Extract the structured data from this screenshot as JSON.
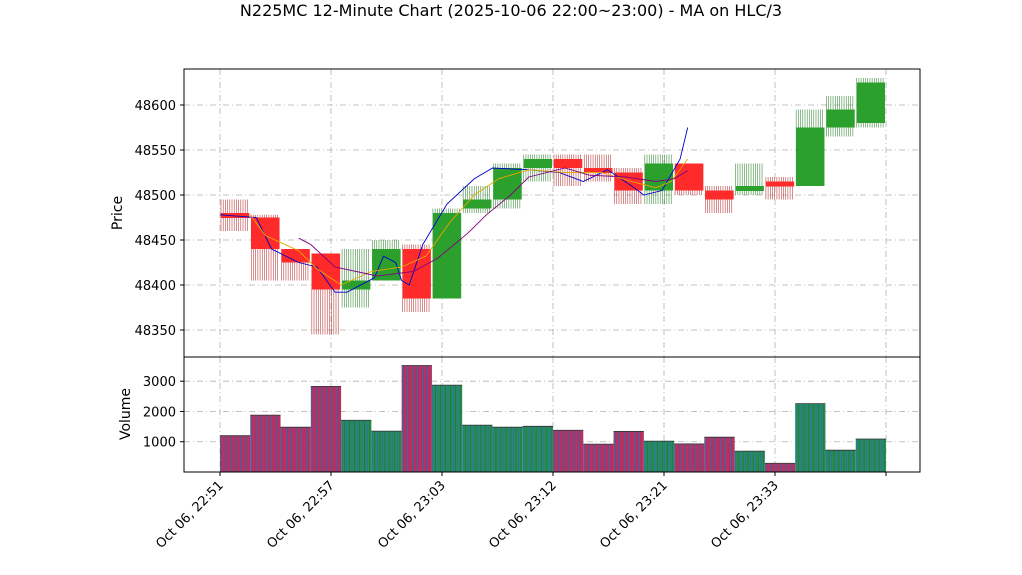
{
  "chart_data": {
    "type": "candlestick",
    "title": "N225MC 12-Minute Chart (2025-10-06 22:00~23:00) - MA on HLC/3",
    "price_panel": {
      "ylabel": "Price",
      "ylim": [
        48320,
        48640
      ],
      "yticks": [
        48350,
        48400,
        48450,
        48500,
        48550,
        48600
      ],
      "ytick_labels": [
        "48350",
        "48400",
        "48450",
        "48500",
        "48550",
        "48600"
      ],
      "grid": true
    },
    "volume_panel": {
      "ylabel": "Volume",
      "ylim": [
        0,
        3800
      ],
      "yticks": [
        1000,
        2000,
        3000
      ],
      "ytick_labels": [
        "1000",
        "2000",
        "3000"
      ],
      "grid": true
    },
    "x_axis": {
      "tick_labels": [
        "Oct 06, 22:51",
        "Oct 06, 22:57",
        "Oct 06, 23:03",
        "Oct 06, 23:12",
        "Oct 06, 23:21",
        "Oct 06, 23:33"
      ]
    },
    "candles": [
      {
        "open": 48480,
        "high": 48495,
        "low": 48460,
        "close": 48475,
        "volume": 1200
      },
      {
        "open": 48475,
        "high": 48478,
        "low": 48405,
        "close": 48440,
        "volume": 1880
      },
      {
        "open": 48440,
        "high": 48440,
        "low": 48405,
        "close": 48425,
        "volume": 1480
      },
      {
        "open": 48435,
        "high": 48435,
        "low": 48345,
        "close": 48395,
        "volume": 2830
      },
      {
        "open": 48395,
        "high": 48440,
        "low": 48375,
        "close": 48405,
        "volume": 1710
      },
      {
        "open": 48405,
        "high": 48450,
        "low": 48405,
        "close": 48440,
        "volume": 1350
      },
      {
        "open": 48440,
        "high": 48445,
        "low": 48370,
        "close": 48385,
        "volume": 3520
      },
      {
        "open": 48385,
        "high": 48485,
        "low": 48385,
        "close": 48480,
        "volume": 2870
      },
      {
        "open": 48485,
        "high": 48510,
        "low": 48480,
        "close": 48495,
        "volume": 1550
      },
      {
        "open": 48495,
        "high": 48535,
        "low": 48485,
        "close": 48530,
        "volume": 1480
      },
      {
        "open": 48530,
        "high": 48545,
        "low": 48515,
        "close": 48540,
        "volume": 1510
      },
      {
        "open": 48540,
        "high": 48545,
        "low": 48510,
        "close": 48530,
        "volume": 1380
      },
      {
        "open": 48530,
        "high": 48545,
        "low": 48515,
        "close": 48525,
        "volume": 920
      },
      {
        "open": 48525,
        "high": 48530,
        "low": 48490,
        "close": 48505,
        "volume": 1340
      },
      {
        "open": 48505,
        "high": 48545,
        "low": 48490,
        "close": 48535,
        "volume": 1020
      },
      {
        "open": 48535,
        "high": 48535,
        "low": 48500,
        "close": 48505,
        "volume": 930
      },
      {
        "open": 48505,
        "high": 48510,
        "low": 48480,
        "close": 48495,
        "volume": 1150
      },
      {
        "open": 48505,
        "high": 48535,
        "low": 48500,
        "close": 48510,
        "volume": 690
      },
      {
        "open": 48515,
        "high": 48520,
        "low": 48495,
        "close": 48510,
        "volume": 290
      },
      {
        "open": 48510,
        "high": 48595,
        "low": 48510,
        "close": 48575,
        "volume": 2260
      },
      {
        "open": 48575,
        "high": 48610,
        "low": 48565,
        "close": 48595,
        "volume": 720
      },
      {
        "open": 48580,
        "high": 48630,
        "low": 48575,
        "close": 48625,
        "volume": 1090
      }
    ],
    "moving_averages": [
      {
        "color": "#0000cc",
        "points": [
          [
            0,
            48478
          ],
          [
            1.2,
            48475
          ],
          [
            1.7,
            48440
          ],
          [
            2.6,
            48425
          ],
          [
            3.2,
            48420
          ],
          [
            3.8,
            48392
          ],
          [
            4.2,
            48392
          ],
          [
            5.1,
            48408
          ],
          [
            5.4,
            48432
          ],
          [
            5.8,
            48425
          ],
          [
            6.0,
            48405
          ],
          [
            6.25,
            48400
          ],
          [
            6.7,
            48445
          ],
          [
            7.5,
            48490
          ],
          [
            8.4,
            48518
          ],
          [
            9.0,
            48530
          ],
          [
            10.2,
            48528
          ],
          [
            11.2,
            48525
          ],
          [
            12.0,
            48515
          ],
          [
            12.8,
            48528
          ],
          [
            13.6,
            48510
          ],
          [
            14.0,
            48500
          ],
          [
            14.6,
            48505
          ],
          [
            15.2,
            48540
          ],
          [
            15.45,
            48575
          ]
        ]
      },
      {
        "color": "#e6a800",
        "points": [
          [
            1.0,
            48478
          ],
          [
            1.5,
            48455
          ],
          [
            2.6,
            48438
          ],
          [
            3.2,
            48418
          ],
          [
            4.0,
            48400
          ],
          [
            5.0,
            48415
          ],
          [
            6.0,
            48420
          ],
          [
            6.8,
            48432
          ],
          [
            7.6,
            48470
          ],
          [
            8.4,
            48500
          ],
          [
            9.2,
            48518
          ],
          [
            10.2,
            48528
          ],
          [
            11.4,
            48525
          ],
          [
            12.6,
            48525
          ],
          [
            13.6,
            48515
          ],
          [
            14.4,
            48508
          ],
          [
            14.9,
            48515
          ],
          [
            15.45,
            48540
          ]
        ]
      },
      {
        "color": "#800080",
        "points": [
          [
            2.6,
            48452
          ],
          [
            3.0,
            48445
          ],
          [
            3.8,
            48420
          ],
          [
            5.2,
            48410
          ],
          [
            6.4,
            48415
          ],
          [
            7.2,
            48430
          ],
          [
            8.2,
            48458
          ],
          [
            8.8,
            48478
          ],
          [
            9.6,
            48500
          ],
          [
            10.2,
            48520
          ],
          [
            11.4,
            48530
          ],
          [
            12.2,
            48522
          ],
          [
            13.4,
            48520
          ],
          [
            14.4,
            48515
          ],
          [
            15.0,
            48518
          ],
          [
            15.45,
            48527
          ]
        ]
      }
    ]
  }
}
